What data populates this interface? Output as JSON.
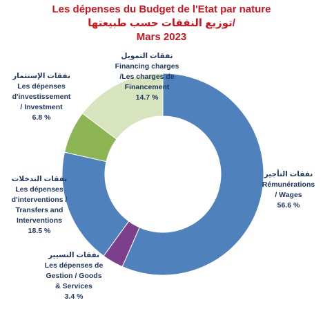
{
  "titles": {
    "line1": "Les dépenses du Budget de l'Etat par nature",
    "line2": "توزيع النفقات حسب طبيعتها/",
    "line3": "Mars 2023"
  },
  "chart_data": {
    "type": "pie",
    "donut": true,
    "slices": [
      {
        "key": "wages",
        "value": 56.6,
        "color": "#4f81bd",
        "label_lines": [
          "نفقات التأجير",
          "Rémunérations",
          "/   Wages",
          "56.6 %"
        ]
      },
      {
        "key": "goods",
        "value": 3.4,
        "color": "#7b3f8c",
        "label_lines": [
          "نفقات التسيير",
          "Les dépenses de",
          "Gestion /  Goods",
          "& Services",
          "3.4 %"
        ]
      },
      {
        "key": "transfers",
        "value": 18.5,
        "color": "#4f81bd",
        "label_lines": [
          "نفقات التدخلات",
          "Les dépenses",
          "d'interventions  /",
          "Transfers and",
          "Interventions",
          "18.5 %"
        ]
      },
      {
        "key": "investment",
        "value": 6.8,
        "color": "#8db554",
        "label_lines": [
          "نفقات الإستثمار",
          "Les dépenses",
          "d'investissement",
          "/    Investment",
          "6.8 %"
        ]
      },
      {
        "key": "financing",
        "value": 14.7,
        "color": "#d7e4bd",
        "label_lines": [
          "نفقات التمويل",
          "Financing charges",
          "/Les charges de",
          "Financement",
          "14.7  %"
        ]
      }
    ]
  }
}
